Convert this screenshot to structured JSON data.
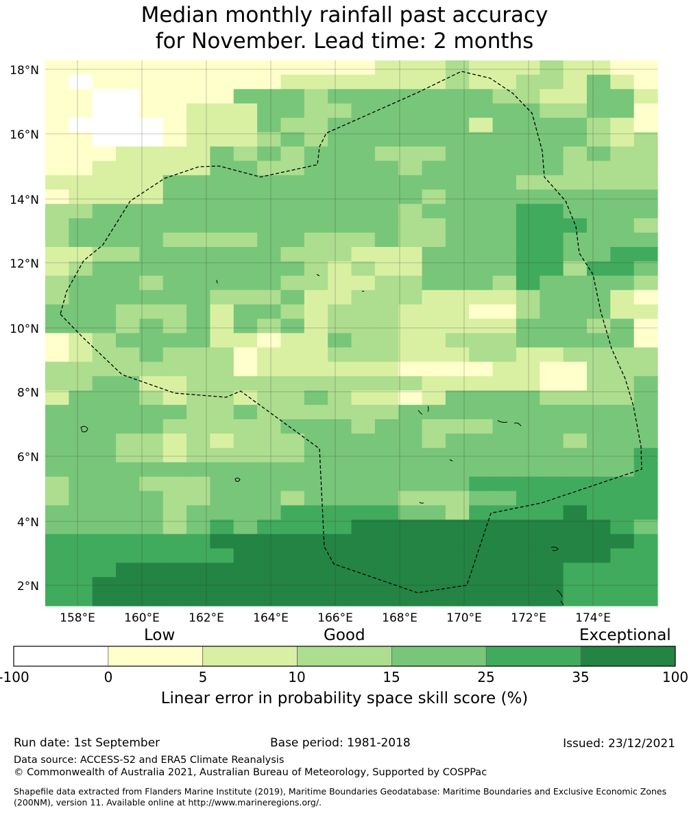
{
  "title": {
    "line1": "Median monthly rainfall past accuracy",
    "line2": "for November. Lead time: 2 months"
  },
  "map": {
    "lat_labels": [
      "18°N",
      "16°N",
      "14°N",
      "12°N",
      "10°N",
      "8°N",
      "6°N",
      "4°N",
      "2°N"
    ],
    "lon_labels": [
      "158°E",
      "160°E",
      "162°E",
      "164°E",
      "166°E",
      "168°E",
      "170°E",
      "172°E",
      "174°E"
    ],
    "colors": [
      "#ffffff",
      "#ffffcc",
      "#d9f0a3",
      "#addd8e",
      "#78c679",
      "#41ab5d",
      "#238443"
    ],
    "grid": [
      "11111111111111222322232211",
      "10111111112222222322332421",
      "11001111444344444443322442",
      "11001122244334444444433441",
      "10000122243344444424444321",
      "11000122234344444444444323",
      "11122224343444333444443433",
      "11222224433444434444443333",
      "22222444444444444444333333",
      "12222444444444443444444444",
      "33444444444444434444554444",
      "34444444444444433444555443",
      "34444333344333433444554444",
      "22334444443332224444554455",
      "23444444444323224444553554",
      "34443444443322334443544443",
      "34444443334223332222344421",
      "44433342443233322211344422",
      "44434342434233322222444341",
      "12344442212243322333444441",
      "12334333122233322233223333",
      "33333333122222211112211333",
      "33442233333333332222211334",
      "24443233233432212444433334",
      "44444433433333344444444444",
      "44444333334443443334444444",
      "44433232333444443444443444",
      "44433233333444444444444445",
      "44444444444444444444444445",
      "34443334444444444455555555",
      "34444334443444433344555555",
      "44444344445555544355556555",
      "44444345455556666666666654",
      "55555556666666666666666665",
      "55555555666666666666666655",
      "55566666666666666666665555",
      "55666666666666666666665555",
      "55666666666666666666665555"
    ]
  },
  "colorbar": {
    "words": [
      "Low",
      "Good",
      "Exceptional"
    ],
    "ticks": [
      "-100",
      "0",
      "5",
      "10",
      "15",
      "25",
      "35",
      "100"
    ],
    "label": "Linear error in probability space skill score (%)"
  },
  "footer": {
    "run_date": "Run date: 1st September",
    "base_period": "Base period: 1981-2018",
    "issued": "Issued: 23/12/2021",
    "data_source": "Data source: ACCESS-S2 and ERA5 Climate Reanalysis",
    "copyright": "© Commonwealth of Australia 2021, Australian Bureau of Meteorology, Supported by COSPPac",
    "shapefile": "Shapefile data extracted from Flanders Marine Institute (2019), Maritime Boundaries Geodatabase: Maritime Boundaries and Exclusive Economic Zones (200NM), version 11. Available online at http://www.marineregions.org/."
  }
}
